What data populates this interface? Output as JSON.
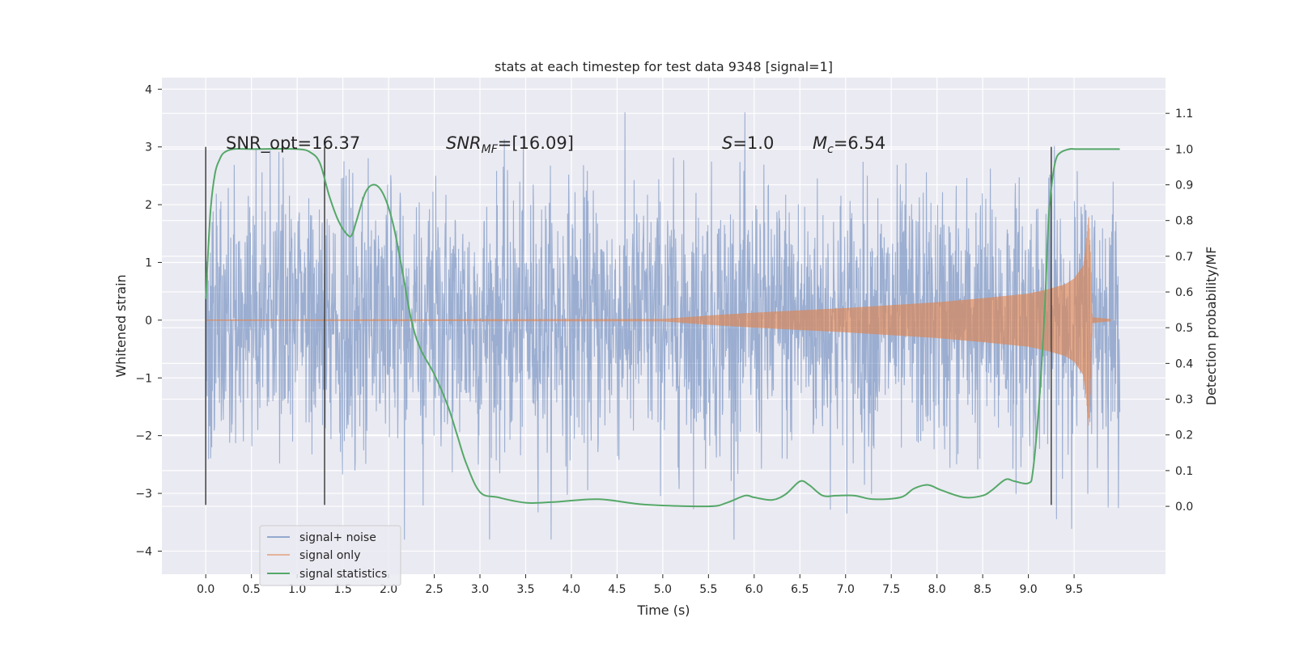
{
  "chart_data": {
    "type": "line",
    "title": "stats at each timestep for test data 9348 [signal=1]",
    "xlabel": "Time (s)",
    "ylabel": "Whitened strain",
    "y2label": "Detection probability/MF",
    "xlim": [
      -0.48,
      10.5
    ],
    "ylim": [
      -4.4,
      4.2
    ],
    "y2lim": [
      -0.19,
      1.2
    ],
    "xticks": [
      0.0,
      0.5,
      1.0,
      1.5,
      2.0,
      2.5,
      3.0,
      3.5,
      4.0,
      4.5,
      5.0,
      5.5,
      6.0,
      6.5,
      7.0,
      7.5,
      8.0,
      8.5,
      9.0,
      9.5
    ],
    "xtick_labels": [
      "0.0",
      "0.5",
      "1.0",
      "1.5",
      "2.0",
      "2.5",
      "3.0",
      "3.5",
      "4.0",
      "4.5",
      "5.0",
      "5.5",
      "6.0",
      "6.5",
      "7.0",
      "7.5",
      "8.0",
      "8.5",
      "9.0",
      "9.5"
    ],
    "yticks": [
      4,
      3,
      2,
      1,
      0,
      -1,
      -2,
      -3,
      -4
    ],
    "ytick_labels": [
      "4",
      "3",
      "2",
      "1",
      "0",
      "−1",
      "−2",
      "−3",
      "−4"
    ],
    "y2ticks": [
      1.1,
      1.0,
      0.9,
      0.8,
      0.7,
      0.6,
      0.5,
      0.4,
      0.3,
      0.2,
      0.1,
      0.0
    ],
    "y2tick_labels": [
      "1.1",
      "1.0",
      "0.9",
      "0.8",
      "0.7",
      "0.6",
      "0.5",
      "0.4",
      "0.3",
      "0.2",
      "0.1",
      "0.0"
    ],
    "grid": true,
    "legend_position": "lower-left",
    "series": [
      {
        "name": "signal+ noise",
        "color": "#4c72b0",
        "axis": "left",
        "description_range": [
          -4.1,
          3.8
        ],
        "t_range": [
          0.0,
          10.0
        ]
      },
      {
        "name": "signal only",
        "color": "#dd8452",
        "axis": "left",
        "t_range": [
          0.0,
          9.9
        ],
        "envelope": {
          "t": [
            0.0,
            5.0,
            5.5,
            6.0,
            6.5,
            7.0,
            7.5,
            8.0,
            8.5,
            9.0,
            9.2,
            9.4,
            9.5,
            9.6,
            9.63,
            9.66,
            9.68,
            9.7,
            9.9
          ],
          "amp": [
            0.01,
            0.02,
            0.08,
            0.13,
            0.17,
            0.21,
            0.26,
            0.31,
            0.38,
            0.46,
            0.53,
            0.62,
            0.72,
            0.95,
            1.3,
            1.85,
            1.2,
            0.05,
            0.02
          ]
        }
      },
      {
        "name": "signal statistics",
        "color": "#55a868",
        "axis": "right",
        "t": [
          0.0,
          0.05,
          0.1,
          0.15,
          0.2,
          0.3,
          0.5,
          1.0,
          1.15,
          1.25,
          1.35,
          1.45,
          1.55,
          1.6,
          1.65,
          1.75,
          1.85,
          1.95,
          2.05,
          2.15,
          2.25,
          2.35,
          2.5,
          2.65,
          2.75,
          2.85,
          3.0,
          3.2,
          3.5,
          3.8,
          4.3,
          4.8,
          5.5,
          5.7,
          5.9,
          6.0,
          6.2,
          6.35,
          6.5,
          6.6,
          6.75,
          6.9,
          7.1,
          7.3,
          7.6,
          7.75,
          7.9,
          8.05,
          8.3,
          8.5,
          8.6,
          8.75,
          8.85,
          9.0,
          9.05,
          9.12,
          9.18,
          9.22,
          9.26,
          9.3,
          9.35,
          9.45,
          9.55,
          10.0
        ],
        "values": [
          0.58,
          0.82,
          0.93,
          0.97,
          0.99,
          1.0,
          1.0,
          1.0,
          0.99,
          0.96,
          0.87,
          0.8,
          0.76,
          0.76,
          0.8,
          0.88,
          0.9,
          0.87,
          0.79,
          0.66,
          0.52,
          0.44,
          0.37,
          0.28,
          0.2,
          0.12,
          0.04,
          0.025,
          0.01,
          0.012,
          0.02,
          0.005,
          0.0,
          0.01,
          0.03,
          0.025,
          0.018,
          0.035,
          0.07,
          0.06,
          0.03,
          0.03,
          0.03,
          0.02,
          0.025,
          0.05,
          0.06,
          0.045,
          0.025,
          0.03,
          0.045,
          0.075,
          0.07,
          0.065,
          0.1,
          0.3,
          0.56,
          0.8,
          0.91,
          0.97,
          0.99,
          1.0,
          1.0,
          1.0
        ]
      }
    ],
    "vlines": [
      0.0,
      1.3,
      9.25
    ],
    "vline_color": "#404040",
    "vline_range": [
      -3.2,
      3.0
    ],
    "annotations": {
      "snr_opt": "SNR_opt=16.37",
      "snr_mf_main": "SNR",
      "snr_mf_sub": "MF",
      "snr_mf_value": "=[16.09]",
      "s_main": "S",
      "s_value": "=1.0",
      "mc_main": "M",
      "mc_sub": "c",
      "mc_value": "=6.54"
    }
  }
}
